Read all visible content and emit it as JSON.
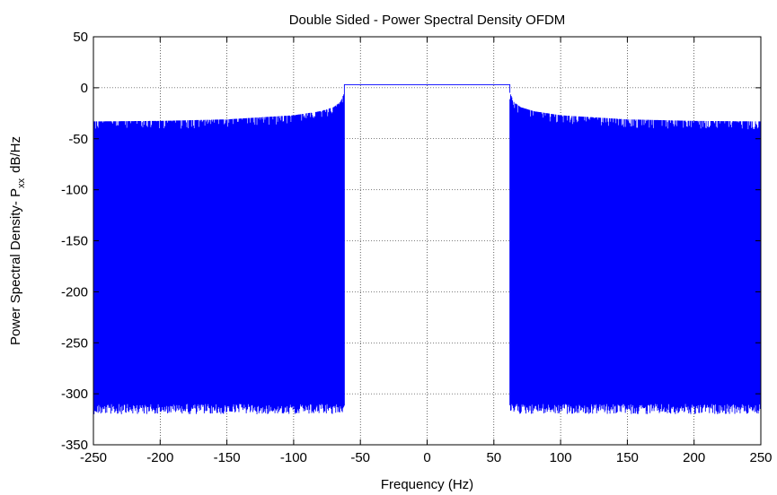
{
  "chart_data": {
    "type": "line",
    "title": "Double Sided - Power Spectral Density OFDM",
    "xlabel": "Frequency (Hz)",
    "ylabel": {
      "prefix": "Power Spectral Density- P",
      "subscript": "xx",
      "suffix": "dB/Hz"
    },
    "xlim": [
      -250,
      250
    ],
    "ylim": [
      -350,
      50
    ],
    "xticks": [
      -250,
      -200,
      -150,
      -100,
      -50,
      0,
      50,
      100,
      150,
      200,
      250
    ],
    "yticks": [
      50,
      0,
      -50,
      -100,
      -150,
      -200,
      -250,
      -300,
      -350
    ],
    "grid": true,
    "series": [
      {
        "color": "#0000ff",
        "band_edges_hz": [
          -62,
          62
        ],
        "passband_level_db": 3,
        "sidelobe_upper_db": {
          "x": [
            -250,
            -200,
            -150,
            -100,
            -80,
            -70,
            -65,
            -62,
            62,
            65,
            70,
            80,
            100,
            150,
            200,
            250
          ],
          "y": [
            -33,
            -32.5,
            -31,
            -27,
            -23,
            -19,
            -14,
            -5,
            -5,
            -14,
            -19,
            -23,
            -27,
            -31,
            -32.5,
            -33
          ]
        },
        "sidelobe_lower_db": [
          -310,
          -320
        ]
      }
    ]
  }
}
